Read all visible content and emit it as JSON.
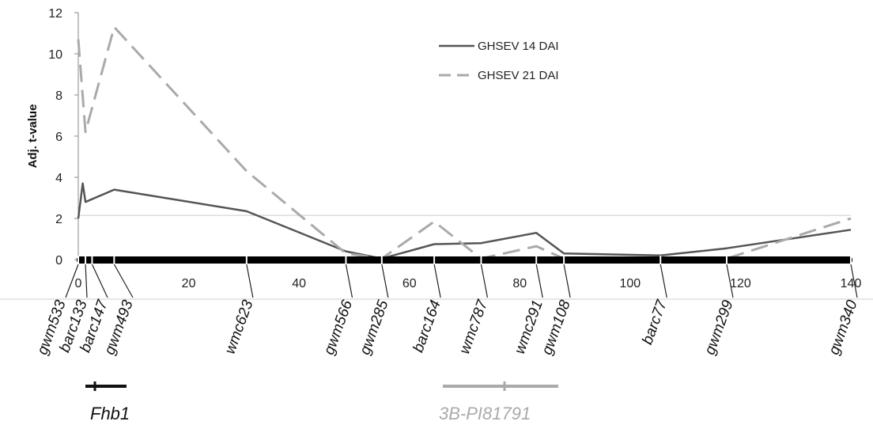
{
  "chart_data": {
    "type": "line",
    "ylabel": "Adj. t-value",
    "xlabel": "",
    "xlim": [
      0,
      140
    ],
    "ylim": [
      0,
      12
    ],
    "x_ticks": [
      0,
      20,
      40,
      60,
      80,
      100,
      120,
      140
    ],
    "y_ticks": [
      0,
      2,
      4,
      6,
      8,
      10,
      12
    ],
    "legend_position": "top-right",
    "markers": [
      {
        "name": "gwm533",
        "pos": 0
      },
      {
        "name": "barc133",
        "pos": 1.3
      },
      {
        "name": "barc147",
        "pos": 2.5
      },
      {
        "name": "gwm493",
        "pos": 6.5
      },
      {
        "name": "wmc623",
        "pos": 30.5
      },
      {
        "name": "gwm566",
        "pos": 48.5
      },
      {
        "name": "gwm285",
        "pos": 55
      },
      {
        "name": "barc164",
        "pos": 64.5
      },
      {
        "name": "wmc787",
        "pos": 73
      },
      {
        "name": "wmc291",
        "pos": 83
      },
      {
        "name": "gwm108",
        "pos": 88
      },
      {
        "name": "barc77",
        "pos": 105.5
      },
      {
        "name": "gwm299",
        "pos": 117.5
      },
      {
        "name": "gwm340",
        "pos": 140
      }
    ],
    "series": [
      {
        "name": "GHSEV 14 DAI",
        "color": "#555555",
        "dash": "solid",
        "x": [
          0,
          0.8,
          1.3,
          6.5,
          30.5,
          48.5,
          55,
          64.5,
          73,
          83,
          88,
          105.5,
          117.5,
          140
        ],
        "y": [
          2.0,
          3.7,
          2.8,
          3.4,
          2.35,
          0.4,
          0.05,
          0.75,
          0.8,
          1.3,
          0.3,
          0.2,
          0.55,
          1.45
        ]
      },
      {
        "name": "GHSEV 21 DAI",
        "color": "#aaaaaa",
        "dash": "dashed",
        "x": [
          0,
          1.3,
          6.5,
          30.5,
          48.5,
          55,
          64.5,
          73,
          83,
          88,
          105.5,
          117.5,
          140
        ],
        "y": [
          10.7,
          6.2,
          11.3,
          4.3,
          0.3,
          0.05,
          1.85,
          0.05,
          0.65,
          0.05,
          0.05,
          0.05,
          2.0
        ]
      }
    ],
    "reference_line_y": 2.15,
    "qtl_regions": [
      {
        "label": "Fhb1",
        "start": 1.3,
        "end": 8.5,
        "peak": 3.0,
        "color": "#111111"
      },
      {
        "label": "3B-PI81791",
        "start": 66,
        "end": 87,
        "peak": 77,
        "color": "#aaaaaa"
      }
    ]
  }
}
